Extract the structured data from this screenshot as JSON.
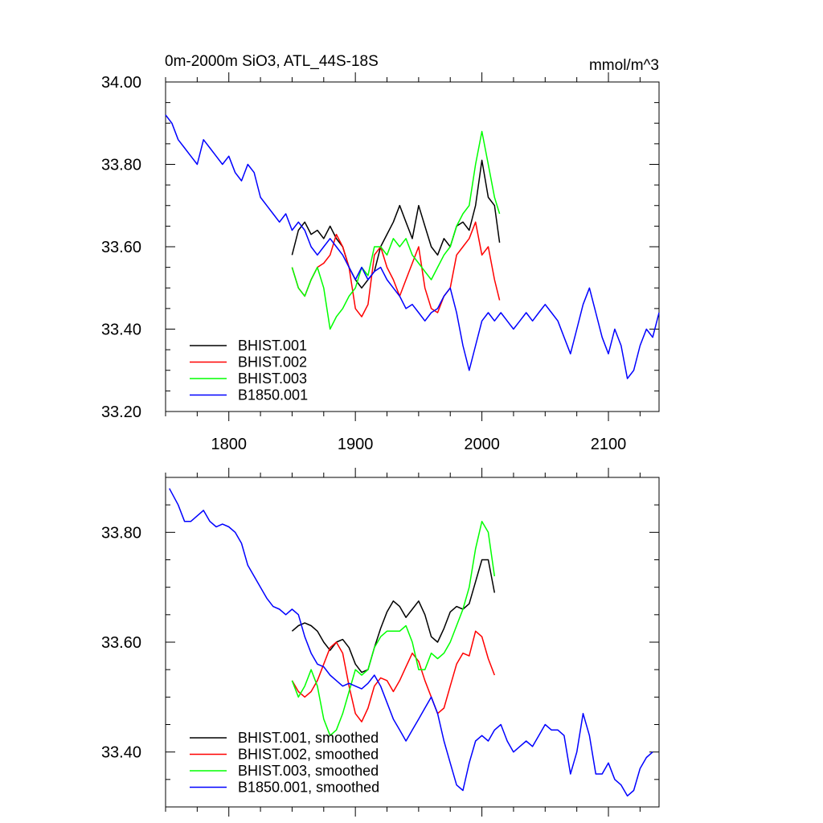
{
  "chart_data": [
    {
      "type": "line",
      "title": "0m-2000m SiO3, ATL_44S-18S",
      "units": "mmol/m^3",
      "xlim": [
        1750,
        2140
      ],
      "ylim": [
        33.2,
        34.0
      ],
      "x_ticks": [
        1800,
        1900,
        2000,
        2100
      ],
      "x_tick_labels": [
        "1800",
        "1900",
        "2000",
        "2100"
      ],
      "y_ticks": [
        33.2,
        33.4,
        33.6,
        33.8,
        34.0
      ],
      "y_tick_labels": [
        "33.20",
        "33.40",
        "33.60",
        "33.80",
        "34.00"
      ],
      "legend_position": "bottom-left",
      "series": [
        {
          "name": "BHIST.001",
          "color": "#000000",
          "x": [
            1850,
            1855,
            1860,
            1865,
            1870,
            1875,
            1880,
            1885,
            1890,
            1895,
            1900,
            1905,
            1910,
            1915,
            1920,
            1925,
            1930,
            1935,
            1940,
            1945,
            1950,
            1955,
            1960,
            1965,
            1970,
            1975,
            1980,
            1985,
            1990,
            1995,
            2000,
            2005,
            2010,
            2014
          ],
          "y": [
            33.58,
            33.64,
            33.66,
            33.63,
            33.64,
            33.62,
            33.65,
            33.62,
            33.6,
            33.55,
            33.52,
            33.5,
            33.52,
            33.54,
            33.6,
            33.63,
            33.66,
            33.7,
            33.66,
            33.62,
            33.7,
            33.65,
            33.6,
            33.58,
            33.62,
            33.6,
            33.65,
            33.66,
            33.64,
            33.7,
            33.81,
            33.72,
            33.7,
            33.61
          ]
        },
        {
          "name": "BHIST.002",
          "color": "#ff0000",
          "x": [
            1850,
            1855,
            1860,
            1865,
            1870,
            1875,
            1880,
            1885,
            1890,
            1895,
            1900,
            1905,
            1910,
            1915,
            1920,
            1925,
            1930,
            1935,
            1940,
            1945,
            1950,
            1955,
            1960,
            1965,
            1970,
            1975,
            1980,
            1985,
            1990,
            1995,
            2000,
            2005,
            2010,
            2014
          ],
          "y": [
            33.55,
            33.5,
            33.48,
            33.52,
            33.55,
            33.56,
            33.58,
            33.63,
            33.6,
            33.55,
            33.45,
            33.43,
            33.46,
            33.58,
            33.6,
            33.55,
            33.52,
            33.48,
            33.52,
            33.56,
            33.6,
            33.5,
            33.45,
            33.44,
            33.48,
            33.5,
            33.58,
            33.6,
            33.62,
            33.66,
            33.58,
            33.6,
            33.52,
            33.47
          ]
        },
        {
          "name": "BHIST.003",
          "color": "#00ff00",
          "x": [
            1850,
            1855,
            1860,
            1865,
            1870,
            1875,
            1880,
            1885,
            1890,
            1895,
            1900,
            1905,
            1910,
            1915,
            1920,
            1925,
            1930,
            1935,
            1940,
            1945,
            1950,
            1955,
            1960,
            1965,
            1970,
            1975,
            1980,
            1985,
            1990,
            1995,
            2000,
            2005,
            2010,
            2014
          ],
          "y": [
            33.55,
            33.5,
            33.48,
            33.52,
            33.55,
            33.5,
            33.4,
            33.43,
            33.45,
            33.48,
            33.5,
            33.55,
            33.53,
            33.6,
            33.6,
            33.58,
            33.62,
            33.6,
            33.62,
            33.58,
            33.56,
            33.54,
            33.52,
            33.55,
            33.58,
            33.6,
            33.65,
            33.68,
            33.7,
            33.8,
            33.88,
            33.8,
            33.72,
            33.68
          ]
        },
        {
          "name": "B1850.001",
          "color": "#0000ff",
          "x": [
            1750,
            1755,
            1760,
            1765,
            1770,
            1775,
            1780,
            1785,
            1790,
            1795,
            1800,
            1805,
            1810,
            1815,
            1820,
            1825,
            1830,
            1835,
            1840,
            1845,
            1850,
            1855,
            1860,
            1865,
            1870,
            1875,
            1880,
            1885,
            1890,
            1895,
            1900,
            1905,
            1910,
            1915,
            1920,
            1925,
            1930,
            1935,
            1940,
            1945,
            1950,
            1955,
            1960,
            1965,
            1970,
            1975,
            1980,
            1985,
            1990,
            1995,
            2000,
            2005,
            2010,
            2015,
            2020,
            2025,
            2030,
            2035,
            2040,
            2045,
            2050,
            2055,
            2060,
            2065,
            2070,
            2075,
            2080,
            2085,
            2090,
            2095,
            2100,
            2105,
            2110,
            2115,
            2120,
            2125,
            2130,
            2135,
            2140
          ],
          "y": [
            33.92,
            33.9,
            33.86,
            33.84,
            33.82,
            33.8,
            33.86,
            33.84,
            33.82,
            33.8,
            33.82,
            33.78,
            33.76,
            33.8,
            33.78,
            33.72,
            33.7,
            33.68,
            33.66,
            33.68,
            33.64,
            33.66,
            33.64,
            33.6,
            33.58,
            33.6,
            33.62,
            33.6,
            33.58,
            33.55,
            33.52,
            33.55,
            33.52,
            33.54,
            33.55,
            33.52,
            33.5,
            33.48,
            33.45,
            33.46,
            33.44,
            33.42,
            33.44,
            33.45,
            33.48,
            33.5,
            33.44,
            33.36,
            33.3,
            33.36,
            33.42,
            33.44,
            33.42,
            33.44,
            33.42,
            33.4,
            33.42,
            33.44,
            33.42,
            33.44,
            33.46,
            33.44,
            33.42,
            33.38,
            33.34,
            33.4,
            33.46,
            33.5,
            33.44,
            33.38,
            33.34,
            33.4,
            33.36,
            33.28,
            33.3,
            33.36,
            33.4,
            33.38,
            33.44
          ]
        }
      ]
    },
    {
      "type": "line",
      "xlim": [
        1750,
        2140
      ],
      "ylim": [
        33.3,
        33.9
      ],
      "x_ticks": [
        1800,
        1900,
        2000,
        2100
      ],
      "x_tick_labels": [],
      "y_ticks": [
        33.4,
        33.6,
        33.8
      ],
      "y_tick_labels": [
        "33.40",
        "33.60",
        "33.80"
      ],
      "legend_position": "bottom-left",
      "series": [
        {
          "name": "BHIST.001, smoothed",
          "color": "#000000",
          "x": [
            1850,
            1855,
            1860,
            1865,
            1870,
            1875,
            1880,
            1885,
            1890,
            1895,
            1900,
            1905,
            1910,
            1915,
            1920,
            1925,
            1930,
            1935,
            1940,
            1945,
            1950,
            1955,
            1960,
            1965,
            1970,
            1975,
            1980,
            1985,
            1990,
            1995,
            2000,
            2005,
            2010
          ],
          "y": [
            33.62,
            33.63,
            33.635,
            33.63,
            33.62,
            33.6,
            33.585,
            33.6,
            33.605,
            33.59,
            33.56,
            33.545,
            33.55,
            33.59,
            33.625,
            33.655,
            33.675,
            33.665,
            33.645,
            33.66,
            33.675,
            33.65,
            33.61,
            33.6,
            33.625,
            33.655,
            33.665,
            33.66,
            33.67,
            33.71,
            33.75,
            33.75,
            33.69
          ]
        },
        {
          "name": "BHIST.002, smoothed",
          "color": "#ff0000",
          "x": [
            1850,
            1855,
            1860,
            1865,
            1870,
            1875,
            1880,
            1885,
            1890,
            1895,
            1900,
            1905,
            1910,
            1915,
            1920,
            1925,
            1930,
            1935,
            1940,
            1945,
            1950,
            1955,
            1960,
            1965,
            1970,
            1975,
            1980,
            1985,
            1990,
            1995,
            2000,
            2005,
            2010
          ],
          "y": [
            33.53,
            33.51,
            33.5,
            33.51,
            33.53,
            33.56,
            33.59,
            33.6,
            33.58,
            33.52,
            33.47,
            33.455,
            33.48,
            33.52,
            33.535,
            33.53,
            33.51,
            33.53,
            33.555,
            33.58,
            33.565,
            33.53,
            33.5,
            33.47,
            33.48,
            33.52,
            33.56,
            33.58,
            33.575,
            33.62,
            33.61,
            33.57,
            33.54
          ]
        },
        {
          "name": "BHIST.003, smoothed",
          "color": "#00ff00",
          "x": [
            1850,
            1855,
            1860,
            1865,
            1870,
            1875,
            1880,
            1885,
            1890,
            1895,
            1900,
            1905,
            1910,
            1915,
            1920,
            1925,
            1930,
            1935,
            1940,
            1945,
            1950,
            1955,
            1960,
            1965,
            1970,
            1975,
            1980,
            1985,
            1990,
            1995,
            2000,
            2005,
            2010
          ],
          "y": [
            33.53,
            33.5,
            33.52,
            33.55,
            33.52,
            33.46,
            33.43,
            33.44,
            33.47,
            33.51,
            33.55,
            33.54,
            33.55,
            33.59,
            33.61,
            33.62,
            33.62,
            33.62,
            33.63,
            33.6,
            33.55,
            33.55,
            33.58,
            33.57,
            33.58,
            33.6,
            33.63,
            33.66,
            33.7,
            33.77,
            33.82,
            33.8,
            33.72
          ]
        },
        {
          "name": "B1850.001, smoothed",
          "color": "#0000ff",
          "x": [
            1753,
            1760,
            1765,
            1770,
            1775,
            1780,
            1785,
            1790,
            1795,
            1800,
            1805,
            1810,
            1815,
            1820,
            1825,
            1830,
            1835,
            1840,
            1845,
            1850,
            1855,
            1860,
            1865,
            1870,
            1875,
            1880,
            1885,
            1890,
            1895,
            1900,
            1905,
            1910,
            1915,
            1920,
            1925,
            1930,
            1935,
            1940,
            1945,
            1950,
            1955,
            1960,
            1965,
            1970,
            1975,
            1980,
            1985,
            1990,
            1995,
            2000,
            2005,
            2010,
            2015,
            2020,
            2025,
            2030,
            2035,
            2040,
            2045,
            2050,
            2055,
            2060,
            2065,
            2070,
            2075,
            2080,
            2085,
            2090,
            2095,
            2100,
            2105,
            2110,
            2115,
            2120,
            2125,
            2130,
            2135
          ],
          "y": [
            33.88,
            33.85,
            33.82,
            33.82,
            33.83,
            33.84,
            33.82,
            33.81,
            33.815,
            33.81,
            33.8,
            33.78,
            33.74,
            33.72,
            33.7,
            33.68,
            33.665,
            33.66,
            33.65,
            33.66,
            33.65,
            33.61,
            33.58,
            33.56,
            33.555,
            33.54,
            33.53,
            33.52,
            33.525,
            33.52,
            33.515,
            33.525,
            33.54,
            33.52,
            33.49,
            33.46,
            33.44,
            33.42,
            33.44,
            33.46,
            33.48,
            33.5,
            33.47,
            33.42,
            33.38,
            33.34,
            33.33,
            33.38,
            33.42,
            33.43,
            33.42,
            33.44,
            33.45,
            33.42,
            33.4,
            33.41,
            33.42,
            33.41,
            33.43,
            33.45,
            33.44,
            33.44,
            33.43,
            33.36,
            33.4,
            33.47,
            33.43,
            33.36,
            33.36,
            33.38,
            33.35,
            33.34,
            33.32,
            33.33,
            33.37,
            33.39,
            33.4
          ]
        }
      ]
    }
  ]
}
